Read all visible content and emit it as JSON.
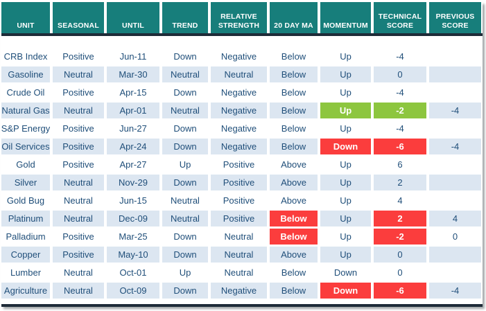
{
  "colors": {
    "header_bg": "#177e7b",
    "header_text": "#ffffff",
    "body_text": "#1f4e79",
    "alt_row_bg": "#dce6f1",
    "highlight_green": "#8dc63f",
    "highlight_red": "#fb3d3d",
    "divider_line": "#1e2b38"
  },
  "chart_data": {
    "type": "table",
    "title": "Commodity technical score table",
    "columns": [
      "UNIT",
      "SEASONAL",
      "UNTIL",
      "TREND",
      "RELATIVE STRENGTH",
      "20 DAY MA",
      "MOMENTUM",
      "TECHNICAL SCORE",
      "PREVIOUS SCORE"
    ],
    "column_keys": [
      "unit",
      "seasonal",
      "until",
      "trend",
      "relative_strength",
      "ma_20day",
      "momentum",
      "technical_score",
      "previous_score"
    ],
    "rows": [
      {
        "unit": "CRB Index",
        "seasonal": "Positive",
        "until": "Jun-11",
        "trend": "Down",
        "relative_strength": "Negative",
        "ma_20day": "Below",
        "momentum": "Up",
        "technical_score": "-4",
        "previous_score": "",
        "highlights": {}
      },
      {
        "unit": "Gasoline",
        "seasonal": "Neutral",
        "until": "Mar-30",
        "trend": "Neutral",
        "relative_strength": "Neutral",
        "ma_20day": "Below",
        "momentum": "Up",
        "technical_score": "0",
        "previous_score": "",
        "highlights": {}
      },
      {
        "unit": "Crude Oil",
        "seasonal": "Positive",
        "until": "Apr-15",
        "trend": "Down",
        "relative_strength": "Negative",
        "ma_20day": "Below",
        "momentum": "Up",
        "technical_score": "-4",
        "previous_score": "",
        "highlights": {}
      },
      {
        "unit": "Natural Gas",
        "seasonal": "Neutral",
        "until": "Apr-01",
        "trend": "Neutral",
        "relative_strength": "Negative",
        "ma_20day": "Below",
        "momentum": "Up",
        "technical_score": "-2",
        "previous_score": "-4",
        "highlights": {
          "momentum": "green",
          "technical_score": "green"
        }
      },
      {
        "unit": "S&P Energy",
        "seasonal": "Positive",
        "until": "Jun-27",
        "trend": "Down",
        "relative_strength": "Negative",
        "ma_20day": "Below",
        "momentum": "Up",
        "technical_score": "-4",
        "previous_score": "",
        "highlights": {}
      },
      {
        "unit": "Oil Services",
        "seasonal": "Positive",
        "until": "Apr-24",
        "trend": "Down",
        "relative_strength": "Negative",
        "ma_20day": "Below",
        "momentum": "Down",
        "technical_score": "-6",
        "previous_score": "-4",
        "highlights": {
          "momentum": "red",
          "technical_score": "red"
        }
      },
      {
        "unit": "Gold",
        "seasonal": "Positive",
        "until": "Apr-27",
        "trend": "Up",
        "relative_strength": "Positive",
        "ma_20day": "Above",
        "momentum": "Up",
        "technical_score": "6",
        "previous_score": "",
        "highlights": {}
      },
      {
        "unit": "Silver",
        "seasonal": "Neutral",
        "until": "Nov-29",
        "trend": "Down",
        "relative_strength": "Positive",
        "ma_20day": "Above",
        "momentum": "Up",
        "technical_score": "2",
        "previous_score": "",
        "highlights": {}
      },
      {
        "unit": "Gold Bug",
        "seasonal": "Neutral",
        "until": "Jun-15",
        "trend": "Neutral",
        "relative_strength": "Positive",
        "ma_20day": "Above",
        "momentum": "Up",
        "technical_score": "4",
        "previous_score": "",
        "highlights": {}
      },
      {
        "unit": "Platinum",
        "seasonal": "Neutral",
        "until": "Dec-09",
        "trend": "Neutral",
        "relative_strength": "Positive",
        "ma_20day": "Below",
        "momentum": "Up",
        "technical_score": "2",
        "previous_score": "4",
        "highlights": {
          "ma_20day": "red",
          "technical_score": "red"
        }
      },
      {
        "unit": "Palladium",
        "seasonal": "Positive",
        "until": "Mar-25",
        "trend": "Down",
        "relative_strength": "Neutral",
        "ma_20day": "Below",
        "momentum": "Up",
        "technical_score": "-2",
        "previous_score": "0",
        "highlights": {
          "ma_20day": "red",
          "technical_score": "red"
        }
      },
      {
        "unit": "Copper",
        "seasonal": "Positive",
        "until": "May-10",
        "trend": "Down",
        "relative_strength": "Neutral",
        "ma_20day": "Above",
        "momentum": "Up",
        "technical_score": "0",
        "previous_score": "",
        "highlights": {}
      },
      {
        "unit": "Lumber",
        "seasonal": "Neutral",
        "until": "Oct-01",
        "trend": "Up",
        "relative_strength": "Neutral",
        "ma_20day": "Below",
        "momentum": "Down",
        "technical_score": "0",
        "previous_score": "",
        "highlights": {}
      },
      {
        "unit": "Agriculture",
        "seasonal": "Neutral",
        "until": "Oct-09",
        "trend": "Down",
        "relative_strength": "Negative",
        "ma_20day": "Below",
        "momentum": "Down",
        "technical_score": "-6",
        "previous_score": "-4",
        "highlights": {
          "momentum": "red",
          "technical_score": "red"
        }
      }
    ]
  }
}
